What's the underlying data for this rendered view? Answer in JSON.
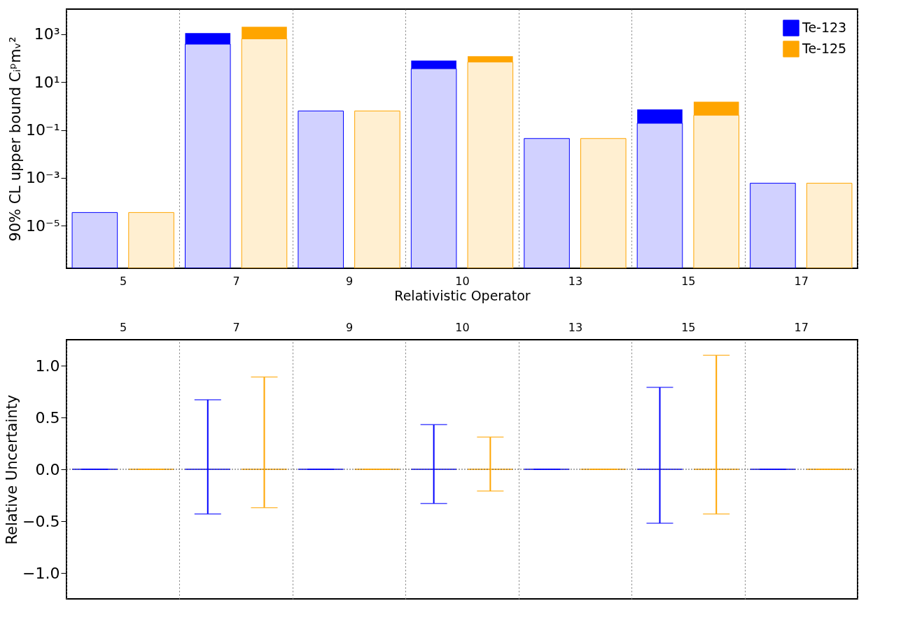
{
  "chart_data": [
    {
      "type": "bar",
      "ylabel": "90% CL upper bound Cᵢᵖmᵥ²",
      "xlabel": "Relativistic Operator",
      "log": true,
      "grid": "x",
      "legend": "top right",
      "categories": [
        "5",
        "7",
        "9",
        "10",
        "13",
        "15",
        "17"
      ],
      "ylim": [
        1.7e-07,
        11000.0
      ],
      "yticks": [
        {
          "value": 1e-05,
          "label": "10⁻⁵"
        },
        {
          "value": 0.001,
          "label": "10⁻³"
        },
        {
          "value": 0.1,
          "label": "10⁻¹"
        },
        {
          "value": 10,
          "label": "10¹"
        },
        {
          "value": 1000,
          "label": "10³"
        }
      ],
      "series": [
        {
          "name": "Te-123",
          "color": "#0000ff",
          "values": [
            3.6e-05,
            380,
            0.62,
            36,
            0.044,
            0.19,
            0.0006
          ],
          "errors": [
            null,
            [
              380,
              1100
            ],
            null,
            [
              36,
              78
            ],
            null,
            [
              0.19,
              0.72
            ],
            null
          ]
        },
        {
          "name": "Te-125",
          "color": "#ffa500",
          "values": [
            3.6e-05,
            630,
            0.62,
            68,
            0.044,
            0.41,
            0.0006
          ],
          "errors": [
            null,
            [
              630,
              2000
            ],
            null,
            [
              68,
              120
            ],
            null,
            [
              0.41,
              1.5
            ],
            null
          ]
        }
      ]
    },
    {
      "type": "bar",
      "ylabel": "Relative Uncertainty",
      "grid": "x",
      "categories": [
        "5",
        "7",
        "9",
        "10",
        "13",
        "15",
        "17"
      ],
      "ylim": [
        -1.25,
        1.25
      ],
      "yticks": [
        {
          "value": -1.0,
          "label": "−1.0"
        },
        {
          "value": -0.5,
          "label": "−0.5"
        },
        {
          "value": 0.0,
          "label": "0.0"
        },
        {
          "value": 0.5,
          "label": "0.5"
        },
        {
          "value": 1.0,
          "label": "1.0"
        }
      ],
      "ref_lines": [
        {
          "axis": "y",
          "value": 0,
          "color": "#555555",
          "line_style": "dotted"
        }
      ],
      "series": [
        {
          "color": "#0000ff",
          "values": [
            0,
            0,
            0,
            0,
            0,
            0,
            0
          ],
          "errors": [
            [
              0,
              0
            ],
            [
              -0.43,
              0.67
            ],
            [
              0,
              0
            ],
            [
              -0.33,
              0.43
            ],
            [
              0,
              0
            ],
            [
              -0.52,
              0.79
            ],
            [
              0,
              0
            ]
          ]
        },
        {
          "color": "#ffa500",
          "values": [
            0,
            0,
            0,
            0,
            0,
            0,
            0
          ],
          "errors": [
            [
              0,
              0
            ],
            [
              -0.37,
              0.89
            ],
            [
              0,
              0
            ],
            [
              -0.21,
              0.31
            ],
            [
              0,
              0
            ],
            [
              -0.43,
              1.1
            ],
            [
              0,
              0
            ]
          ]
        }
      ]
    }
  ]
}
